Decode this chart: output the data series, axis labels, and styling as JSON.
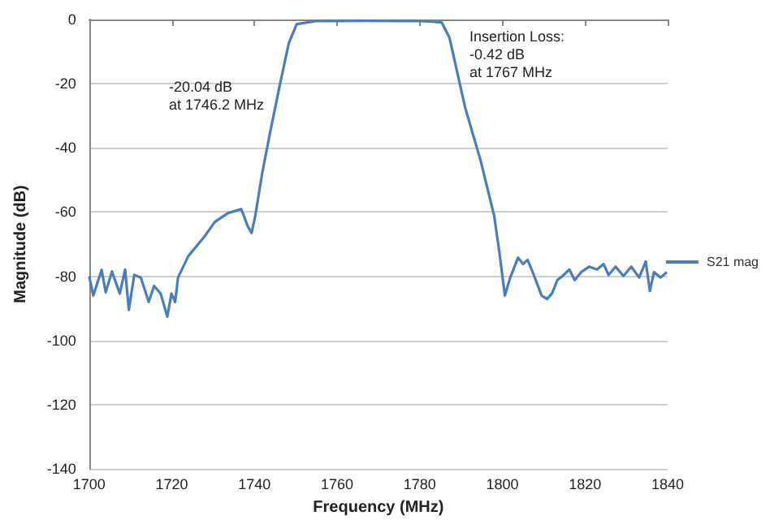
{
  "chart_data": {
    "type": "line",
    "xlabel": "Frequency (MHz)",
    "ylabel": "Magnitude (dB)",
    "xlim": [
      1700,
      1840
    ],
    "xticks": [
      1700,
      1720,
      1740,
      1760,
      1780,
      1800,
      1820,
      1840
    ],
    "ylim": [
      -140,
      0
    ],
    "yticks": [
      -140,
      -120,
      -100,
      -80,
      -60,
      -40,
      -20,
      0
    ],
    "grid": "y",
    "legend": "right",
    "annotations": [
      "-20.04 dB\nat 1746.2 MHz",
      "Insertion Loss:\n-0.42 dB\nat 1767 MHz"
    ],
    "series": [
      {
        "name": "S21 mag",
        "color": "#4a7ebb",
        "x": [
          1700,
          1701,
          1702,
          1703,
          1704,
          1705.5,
          1707.4,
          1708.7,
          1709.6,
          1710.9,
          1712.5,
          1714.4,
          1715.7,
          1717.3,
          1718.9,
          1719.9,
          1720.8,
          1721.5,
          1724,
          1727.8,
          1730.4,
          1733.6,
          1736.8,
          1738.4,
          1739.3,
          1740.2,
          1741.9,
          1743.8,
          1746.2,
          1748.3,
          1750.2,
          1752.8,
          1755,
          1760,
          1767,
          1775,
          1780,
          1783,
          1785.3,
          1787.2,
          1791,
          1794.8,
          1798,
          1799.3,
          1800.6,
          1801.9,
          1803.8,
          1805,
          1806.1,
          1807.6,
          1809.5,
          1810.8,
          1812,
          1813.3,
          1814.6,
          1816.2,
          1817.5,
          1819.1,
          1821,
          1822.9,
          1824.5,
          1825.7,
          1827.4,
          1829.3,
          1831.2,
          1833.1,
          1834.7,
          1835.7,
          1836.7,
          1838.3,
          1839.8
        ],
        "values": [
          -80,
          -86,
          -82,
          -78,
          -85,
          -78.5,
          -85.4,
          -77.9,
          -90.5,
          -79.6,
          -80.4,
          -88,
          -83,
          -85.4,
          -92.6,
          -85.4,
          -88,
          -80.4,
          -73.7,
          -67.8,
          -63.1,
          -60.3,
          -59.1,
          -64.5,
          -66.5,
          -61.1,
          -47.7,
          -35.1,
          -20,
          -7.4,
          -1.5,
          -0.9,
          -0.5,
          -0.5,
          -0.4,
          -0.5,
          -0.5,
          -0.7,
          -0.9,
          -5.7,
          -27.5,
          -44.3,
          -61.1,
          -72.8,
          -86,
          -80.4,
          -74.2,
          -76.2,
          -74.9,
          -79.6,
          -86,
          -87.1,
          -85.4,
          -81.2,
          -79.9,
          -77.9,
          -81.2,
          -78.7,
          -77,
          -77.9,
          -76.2,
          -79.6,
          -77,
          -79.9,
          -77,
          -80.4,
          -75.4,
          -84.6,
          -78.7,
          -80.4,
          -78.7
        ]
      }
    ]
  }
}
